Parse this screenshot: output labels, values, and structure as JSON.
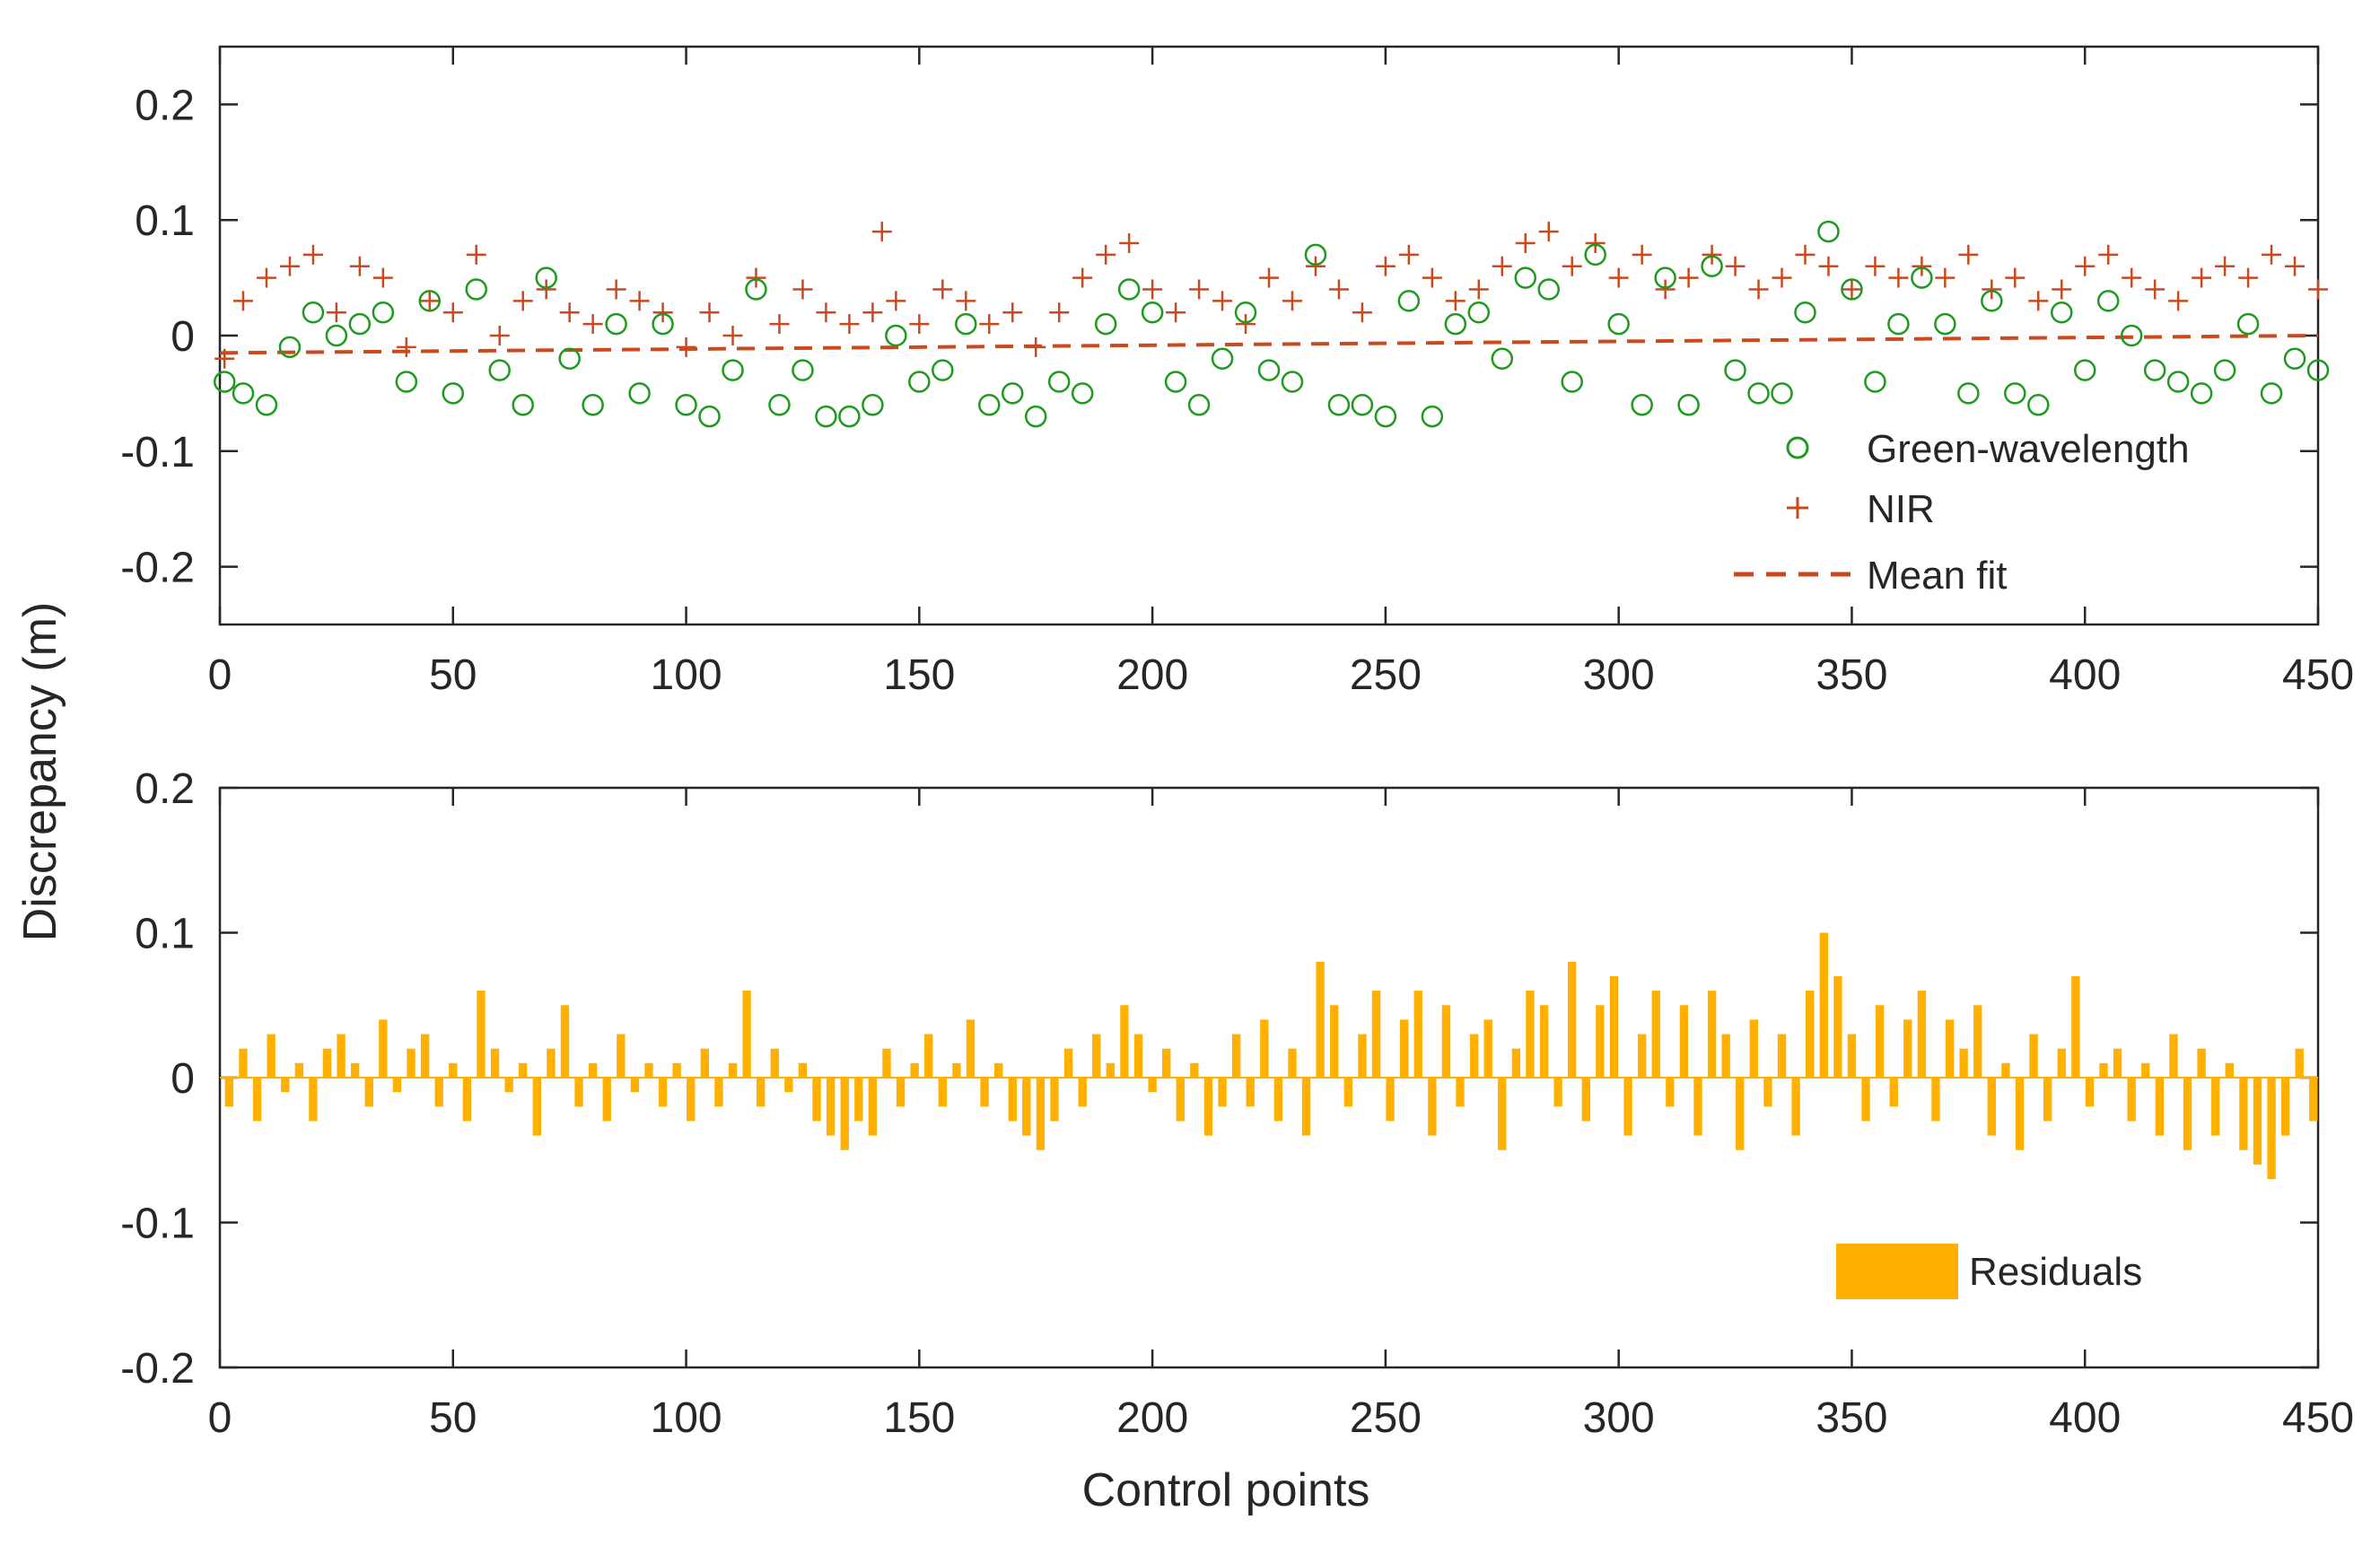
{
  "chart_data": {
    "ylabel": "Discrepancy (m)",
    "xlabel": "Control points",
    "panels": [
      {
        "type": "scatter",
        "xlim": [
          0,
          450
        ],
        "ylim": [
          -0.25,
          0.25
        ],
        "xticks": [
          "0",
          "50",
          "100",
          "150",
          "200",
          "250",
          "300",
          "350",
          "400",
          "450"
        ],
        "yticks": [
          "0.2",
          "0.1",
          "0",
          "-0.1",
          "-0.2"
        ],
        "series": [
          {
            "name": "Green-wavelength",
            "marker": "circle",
            "color": "#1E9A1E",
            "x": [
              1,
              5,
              10,
              15,
              20,
              25,
              30,
              35,
              40,
              45,
              50,
              55,
              60,
              65,
              70,
              75,
              80,
              85,
              90,
              95,
              100,
              105,
              110,
              115,
              120,
              125,
              130,
              135,
              140,
              145,
              150,
              155,
              160,
              165,
              170,
              175,
              180,
              185,
              190,
              195,
              200,
              205,
              210,
              215,
              220,
              225,
              230,
              235,
              240,
              245,
              250,
              255,
              260,
              265,
              270,
              275,
              280,
              285,
              290,
              295,
              300,
              305,
              310,
              315,
              320,
              325,
              330,
              335,
              340,
              345,
              350,
              355,
              360,
              365,
              370,
              375,
              380,
              385,
              390,
              395,
              400,
              405,
              410,
              415,
              420,
              425,
              430,
              435,
              440,
              445,
              450
            ],
            "y": [
              -0.04,
              -0.05,
              -0.06,
              -0.01,
              0.02,
              0.0,
              0.01,
              0.02,
              -0.04,
              0.03,
              -0.05,
              0.04,
              -0.03,
              -0.06,
              0.05,
              -0.02,
              -0.06,
              0.01,
              -0.05,
              0.01,
              -0.06,
              -0.07,
              -0.03,
              0.04,
              -0.06,
              -0.03,
              -0.07,
              -0.07,
              -0.06,
              0.0,
              -0.04,
              -0.03,
              0.01,
              -0.06,
              -0.05,
              -0.07,
              -0.04,
              -0.05,
              0.01,
              0.04,
              0.02,
              -0.04,
              -0.06,
              -0.02,
              0.02,
              -0.03,
              -0.04,
              0.07,
              -0.06,
              -0.06,
              -0.07,
              0.03,
              -0.07,
              0.01,
              0.02,
              -0.02,
              0.05,
              0.04,
              -0.04,
              0.07,
              0.01,
              -0.06,
              0.05,
              -0.06,
              0.06,
              -0.03,
              -0.05,
              -0.05,
              0.02,
              0.09,
              0.04,
              -0.04,
              0.01,
              0.05,
              0.01,
              -0.05,
              0.03,
              -0.05,
              -0.06,
              0.02,
              -0.03,
              0.03,
              0.0,
              -0.03,
              -0.04,
              -0.05,
              -0.03,
              0.01,
              -0.05,
              -0.02,
              -0.03
            ]
          },
          {
            "name": "NIR",
            "marker": "plus",
            "color": "#C84A1E",
            "x": [
              1,
              5,
              10,
              15,
              20,
              25,
              30,
              35,
              40,
              45,
              50,
              55,
              60,
              65,
              70,
              75,
              80,
              85,
              90,
              95,
              100,
              105,
              110,
              115,
              120,
              125,
              130,
              135,
              140,
              142,
              145,
              150,
              155,
              160,
              165,
              170,
              175,
              180,
              185,
              190,
              195,
              200,
              205,
              210,
              215,
              220,
              225,
              230,
              235,
              240,
              245,
              250,
              255,
              260,
              265,
              270,
              275,
              280,
              285,
              290,
              295,
              300,
              305,
              310,
              315,
              320,
              325,
              330,
              335,
              340,
              345,
              350,
              355,
              360,
              365,
              370,
              375,
              380,
              385,
              390,
              395,
              400,
              405,
              410,
              415,
              420,
              425,
              430,
              435,
              440,
              445,
              450
            ],
            "y": [
              -0.02,
              0.03,
              0.05,
              0.06,
              0.07,
              0.02,
              0.06,
              0.05,
              -0.01,
              0.03,
              0.02,
              0.07,
              0.0,
              0.03,
              0.04,
              0.02,
              0.01,
              0.04,
              0.03,
              0.02,
              -0.01,
              0.02,
              0.0,
              0.05,
              0.01,
              0.04,
              0.02,
              0.01,
              0.02,
              0.09,
              0.03,
              0.01,
              0.04,
              0.03,
              0.01,
              0.02,
              -0.01,
              0.02,
              0.05,
              0.07,
              0.08,
              0.04,
              0.02,
              0.04,
              0.03,
              0.01,
              0.05,
              0.03,
              0.06,
              0.04,
              0.02,
              0.06,
              0.07,
              0.05,
              0.03,
              0.04,
              0.06,
              0.08,
              0.09,
              0.06,
              0.08,
              0.05,
              0.07,
              0.04,
              0.05,
              0.07,
              0.06,
              0.04,
              0.05,
              0.07,
              0.06,
              0.04,
              0.06,
              0.05,
              0.06,
              0.05,
              0.07,
              0.04,
              0.05,
              0.03,
              0.04,
              0.06,
              0.07,
              0.05,
              0.04,
              0.03,
              0.05,
              0.06,
              0.05,
              0.07,
              0.06,
              0.04
            ]
          }
        ],
        "fit": {
          "name": "Mean fit",
          "color": "#C84A1E",
          "x": [
            0,
            450
          ],
          "y": [
            -0.015,
            0.0
          ]
        },
        "legend": [
          "Green-wavelength",
          "NIR",
          "Mean fit"
        ],
        "legend_position": "bottom-right"
      },
      {
        "type": "bar",
        "xlim": [
          0,
          450
        ],
        "ylim": [
          -0.2,
          0.2
        ],
        "xticks": [
          "0",
          "50",
          "100",
          "150",
          "200",
          "250",
          "300",
          "350",
          "400",
          "450"
        ],
        "yticks": [
          "0.2",
          "0.1",
          "0",
          "-0.1",
          "-0.2"
        ],
        "series": [
          {
            "name": "Residuals",
            "color": "#FFB000",
            "x": [
              2,
              5,
              8,
              11,
              14,
              17,
              20,
              23,
              26,
              29,
              32,
              35,
              38,
              41,
              44,
              47,
              50,
              53,
              56,
              59,
              62,
              65,
              68,
              71,
              74,
              77,
              80,
              83,
              86,
              89,
              92,
              95,
              98,
              101,
              104,
              107,
              110,
              113,
              116,
              119,
              122,
              125,
              128,
              131,
              134,
              137,
              140,
              143,
              146,
              149,
              152,
              155,
              158,
              161,
              164,
              167,
              170,
              173,
              176,
              179,
              182,
              185,
              188,
              191,
              194,
              197,
              200,
              203,
              206,
              209,
              212,
              215,
              218,
              221,
              224,
              227,
              230,
              233,
              236,
              239,
              242,
              245,
              248,
              251,
              254,
              257,
              260,
              263,
              266,
              269,
              272,
              275,
              278,
              281,
              284,
              287,
              290,
              293,
              296,
              299,
              302,
              305,
              308,
              311,
              314,
              317,
              320,
              323,
              326,
              329,
              332,
              335,
              338,
              341,
              344,
              347,
              350,
              353,
              356,
              359,
              362,
              365,
              368,
              371,
              374,
              377,
              380,
              383,
              386,
              389,
              392,
              395,
              398,
              401,
              404,
              407,
              410,
              413,
              416,
              419,
              422,
              425,
              428,
              431,
              434,
              437,
              440,
              443,
              446,
              449
            ],
            "values": [
              -0.02,
              0.02,
              -0.03,
              0.03,
              -0.01,
              0.01,
              -0.03,
              0.02,
              0.03,
              0.01,
              -0.02,
              0.04,
              -0.01,
              0.02,
              0.03,
              -0.02,
              0.01,
              -0.03,
              0.06,
              0.02,
              -0.01,
              0.01,
              -0.04,
              0.02,
              0.05,
              -0.02,
              0.01,
              -0.03,
              0.03,
              -0.01,
              0.01,
              -0.02,
              0.01,
              -0.03,
              0.02,
              -0.02,
              0.01,
              0.06,
              -0.02,
              0.02,
              -0.01,
              0.01,
              -0.03,
              -0.04,
              -0.05,
              -0.03,
              -0.04,
              0.02,
              -0.02,
              0.01,
              0.03,
              -0.02,
              0.01,
              0.04,
              -0.02,
              0.01,
              -0.03,
              -0.04,
              -0.05,
              -0.03,
              0.02,
              -0.02,
              0.03,
              0.01,
              0.05,
              0.03,
              -0.01,
              0.02,
              -0.03,
              0.01,
              -0.04,
              -0.02,
              0.03,
              -0.02,
              0.04,
              -0.03,
              0.02,
              -0.04,
              0.08,
              0.05,
              -0.02,
              0.03,
              0.06,
              -0.03,
              0.04,
              0.06,
              -0.04,
              0.05,
              -0.02,
              0.03,
              0.04,
              -0.05,
              0.02,
              0.06,
              0.05,
              -0.02,
              0.08,
              -0.03,
              0.05,
              0.07,
              -0.04,
              0.03,
              0.06,
              -0.02,
              0.05,
              -0.04,
              0.06,
              0.03,
              -0.05,
              0.04,
              -0.02,
              0.03,
              -0.04,
              0.06,
              0.1,
              0.07,
              0.03,
              -0.03,
              0.05,
              -0.02,
              0.04,
              0.06,
              -0.03,
              0.04,
              0.02,
              0.05,
              -0.04,
              0.01,
              -0.05,
              0.03,
              -0.03,
              0.02,
              0.07,
              -0.02,
              0.01,
              0.02,
              -0.03,
              0.01,
              -0.04,
              0.03,
              -0.05,
              0.02,
              -0.04,
              0.01,
              -0.05,
              -0.06,
              -0.07,
              -0.04,
              0.02,
              -0.03
            ]
          }
        ],
        "legend": [
          "Residuals"
        ],
        "legend_position": "bottom-right"
      }
    ]
  }
}
